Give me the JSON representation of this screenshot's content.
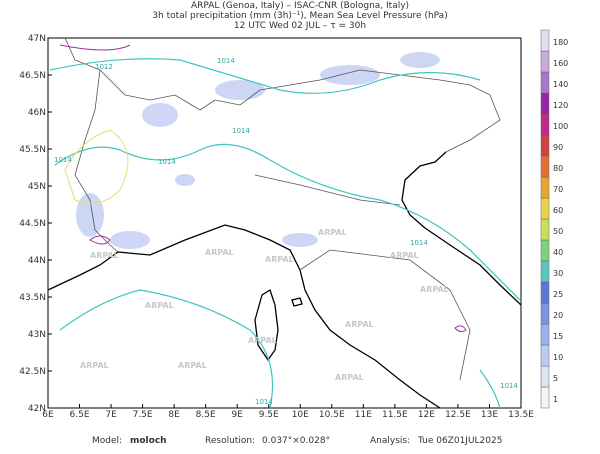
{
  "header": {
    "lines": [
      "ARPAL (Genoa, Italy)  –  ISAC-CNR (Bologna, Italy)",
      "3h total precipitation (mm (3h)⁻¹), Mean Sea Level Pressure (hPa)",
      "12 UTC Wed 02 JUL  –  τ = 30h"
    ]
  },
  "map": {
    "lon_ticks": [
      {
        "value": 6,
        "label": "6E"
      },
      {
        "value": 6.5,
        "label": "6.5E"
      },
      {
        "value": 7,
        "label": "7E"
      },
      {
        "value": 7.5,
        "label": "7.5E"
      },
      {
        "value": 8,
        "label": "8E"
      },
      {
        "value": 8.5,
        "label": "8.5E"
      },
      {
        "value": 9,
        "label": "9E"
      },
      {
        "value": 9.5,
        "label": "9.5E"
      },
      {
        "value": 10,
        "label": "10E"
      },
      {
        "value": 10.5,
        "label": "10.5E"
      },
      {
        "value": 11,
        "label": "11E"
      },
      {
        "value": 11.5,
        "label": "11.5E"
      },
      {
        "value": 12,
        "label": "12E"
      },
      {
        "value": 12.5,
        "label": "12.5E"
      },
      {
        "value": 13,
        "label": "13E"
      },
      {
        "value": 13.5,
        "label": "13.5E"
      }
    ],
    "lat_ticks": [
      {
        "value": 42,
        "label": "42N"
      },
      {
        "value": 42.5,
        "label": "42.5N"
      },
      {
        "value": 43,
        "label": "43N"
      },
      {
        "value": 43.5,
        "label": "43.5N"
      },
      {
        "value": 44,
        "label": "44N"
      },
      {
        "value": 44.5,
        "label": "44.5N"
      },
      {
        "value": 45,
        "label": "45N"
      },
      {
        "value": 45.5,
        "label": "45.5N"
      },
      {
        "value": 46,
        "label": "46N"
      },
      {
        "value": 46.5,
        "label": "46.5N"
      },
      {
        "value": 47,
        "label": "47N"
      }
    ],
    "contour_labels": [
      "1012",
      "1014",
      "1014",
      "1014",
      "1014",
      "1014",
      "1014",
      "1014"
    ],
    "watermark": "ARPAL"
  },
  "colorbar": {
    "levels": [
      1,
      5,
      10,
      15,
      20,
      25,
      30,
      40,
      50,
      60,
      70,
      80,
      90,
      100,
      120,
      140,
      160,
      180
    ],
    "colors": [
      "#f4f4f4",
      "#dce4f4",
      "#bccbf0",
      "#9cb0ea",
      "#7c94e2",
      "#5a78d6",
      "#5cc4c4",
      "#7ed27e",
      "#c8e05c",
      "#ead244",
      "#eaa432",
      "#e27030",
      "#d24040",
      "#c02a86",
      "#9a22a8",
      "#a878c8",
      "#c8aadc",
      "#e6dcf2"
    ]
  },
  "footer": {
    "model_label": "Model:",
    "model": "moloch",
    "resolution_label": "Resolution:",
    "resolution": "0.037°×0.028°",
    "analysis_label": "Analysis:",
    "analysis": "Tue 06Z01JUL2025"
  }
}
